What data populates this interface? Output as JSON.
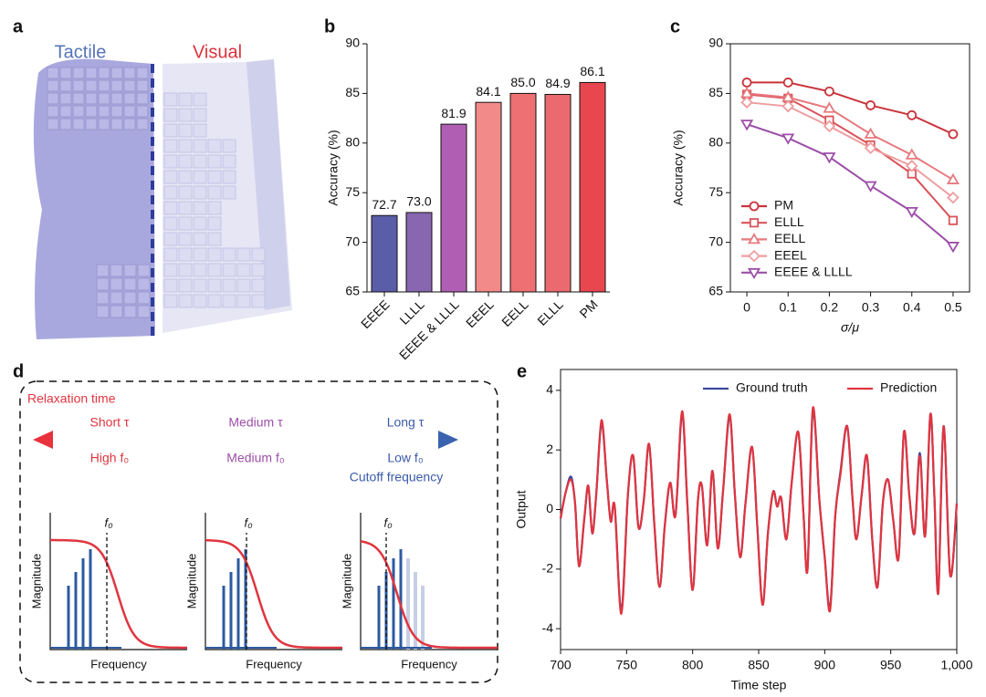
{
  "panel_labels": [
    "a",
    "b",
    "c",
    "d",
    "e"
  ],
  "panel_a": {
    "left": "Tactile",
    "right": "Visual"
  },
  "panel_d": {
    "title": "Relaxation time",
    "top": [
      "Short τ",
      "Medium τ",
      "Long τ"
    ],
    "bottom": [
      "High f₀",
      "Medium f₀",
      "Low f₀"
    ],
    "caption": "Cutoff frequency",
    "plots": [
      {
        "y_label": "Magnitude",
        "x_label": "Frequency",
        "marker": "f₀"
      },
      {
        "y_label": "Magnitude",
        "x_label": "Frequency",
        "marker": "f₀"
      },
      {
        "y_label": "Magnitude",
        "x_label": "Frequency",
        "marker": "f₀"
      }
    ]
  },
  "chart_data": [
    {
      "type": "bar",
      "y_label": "Accuracy (%)",
      "categories": [
        "EEEE",
        "LLLL",
        "EEEE & LLLL",
        "EEEL",
        "EELL",
        "ELLL",
        "PM"
      ],
      "values": [
        72.7,
        73.0,
        81.9,
        84.1,
        85.0,
        84.9,
        86.1
      ],
      "value_labels": [
        "72.7",
        "73.0",
        "81.9",
        "84.1",
        "85.0",
        "84.9",
        "86.1"
      ],
      "colors": [
        "#5a5ea8",
        "#8866b0",
        "#b05eb3",
        "#f28a8a",
        "#ee7072",
        "#eb6a6f",
        "#e8474f"
      ],
      "ylim": [
        65,
        90
      ],
      "yticks": [
        65,
        70,
        75,
        80,
        85,
        90
      ]
    },
    {
      "type": "line",
      "x_label": "σ/μ",
      "y_label": "Accuracy (%)",
      "x": [
        0,
        0.1,
        0.2,
        0.3,
        0.4,
        0.5
      ],
      "series": [
        {
          "name": "PM",
          "color": "#c9343c",
          "marker": "circle",
          "values": [
            86.1,
            86.1,
            85.2,
            83.8,
            82.8,
            80.9
          ]
        },
        {
          "name": "ELLL",
          "color": "#d9545a",
          "marker": "square",
          "values": [
            84.9,
            84.5,
            82.3,
            79.8,
            76.9,
            72.2
          ]
        },
        {
          "name": "EELL",
          "color": "#e67a7e",
          "marker": "triangle",
          "values": [
            85.0,
            84.6,
            83.5,
            80.9,
            78.8,
            76.3
          ]
        },
        {
          "name": "EEEL",
          "color": "#ee9da0",
          "marker": "diamond",
          "values": [
            84.1,
            83.7,
            81.7,
            79.5,
            77.7,
            74.5
          ]
        },
        {
          "name": "EEEE & LLLL",
          "color": "#9c4fa8",
          "marker": "triangle-down",
          "values": [
            81.9,
            80.5,
            78.6,
            75.7,
            73.1,
            69.6
          ]
        }
      ],
      "xlim": [
        -0.04,
        0.54
      ],
      "xticks": [
        0,
        0.1,
        0.2,
        0.3,
        0.4,
        0.5
      ],
      "ylim": [
        65,
        90
      ],
      "yticks": [
        65,
        70,
        75,
        80,
        85,
        90
      ],
      "legend": "lower left"
    },
    {
      "type": "line",
      "x_label": "Time step",
      "y_label": "Output",
      "x": [
        700,
        704,
        708,
        711,
        714,
        718,
        721,
        724,
        727,
        731,
        735,
        738,
        741,
        746,
        751,
        755,
        759,
        763,
        767,
        771,
        775,
        779,
        783,
        787,
        792,
        796,
        800,
        804,
        807,
        811,
        815,
        819,
        823,
        828,
        832,
        836,
        840,
        845,
        849,
        853,
        857,
        861,
        864,
        867,
        871,
        875,
        880,
        884,
        887,
        891,
        896,
        900,
        904,
        908,
        912,
        917,
        921,
        924,
        928,
        932,
        936,
        940,
        944,
        948,
        952,
        956,
        960,
        964,
        968,
        972,
        976,
        980,
        983,
        986,
        990,
        995,
        1000
      ],
      "series": [
        {
          "name": "Ground truth",
          "color": "#3b4a9c",
          "values": [
            -0.3,
            0.6,
            1.1,
            0.2,
            -1.9,
            -0.3,
            0.8,
            -0.8,
            0.5,
            2.9,
            1.0,
            -0.4,
            0.1,
            -3.4,
            0.5,
            1.8,
            -0.6,
            0.3,
            2.2,
            -0.5,
            -2.6,
            -0.5,
            0.9,
            -0.2,
            3.2,
            0.2,
            -2.7,
            0.3,
            0.8,
            -1.2,
            1.3,
            -1.3,
            0.6,
            3.1,
            0.5,
            -1.6,
            0.2,
            2.1,
            -0.6,
            -3.2,
            -0.8,
            0.6,
            0.1,
            0.4,
            -1.0,
            0.9,
            2.6,
            -0.2,
            -2.0,
            3.3,
            0.3,
            -1.6,
            -3.3,
            -0.2,
            1.3,
            2.8,
            0.4,
            -1.0,
            0.5,
            1.8,
            -1.0,
            -2.6,
            0.2,
            1.0,
            -0.4,
            -1.6,
            2.6,
            0.5,
            -0.8,
            1.9,
            -0.9,
            3.2,
            0.5,
            -2.8,
            2.8,
            -2.2,
            0.2
          ]
        },
        {
          "name": "Prediction",
          "color": "#e0353f",
          "values": [
            -0.3,
            0.6,
            1.0,
            0.2,
            -1.9,
            -0.3,
            0.8,
            -0.8,
            0.5,
            3.0,
            1.0,
            -0.4,
            0.1,
            -3.5,
            0.5,
            1.8,
            -0.6,
            0.3,
            2.2,
            -0.5,
            -2.6,
            -0.5,
            0.9,
            -0.2,
            3.3,
            0.2,
            -2.7,
            0.3,
            0.8,
            -1.2,
            1.3,
            -1.3,
            0.6,
            3.2,
            0.5,
            -1.6,
            0.2,
            2.1,
            -0.6,
            -3.2,
            -0.8,
            0.6,
            0.1,
            0.4,
            -1.0,
            0.9,
            2.6,
            -0.2,
            -2.0,
            3.4,
            0.3,
            -1.6,
            -3.4,
            -0.2,
            1.2,
            2.8,
            0.4,
            -1.0,
            0.5,
            1.8,
            -1.0,
            -2.6,
            0.2,
            1.0,
            -0.4,
            -1.6,
            2.6,
            0.5,
            -0.8,
            1.8,
            -0.9,
            3.2,
            0.5,
            -2.8,
            2.8,
            -2.2,
            0.2
          ]
        }
      ],
      "xlim": [
        700,
        1000
      ],
      "xticks": [
        700,
        750,
        800,
        850,
        900,
        950,
        {
          "value": 1000,
          "label": "1,000"
        }
      ],
      "ylim": [
        -4.7,
        4.7
      ],
      "yticks": [
        -4,
        -2,
        0,
        2,
        4
      ],
      "legend": "upper right"
    }
  ]
}
